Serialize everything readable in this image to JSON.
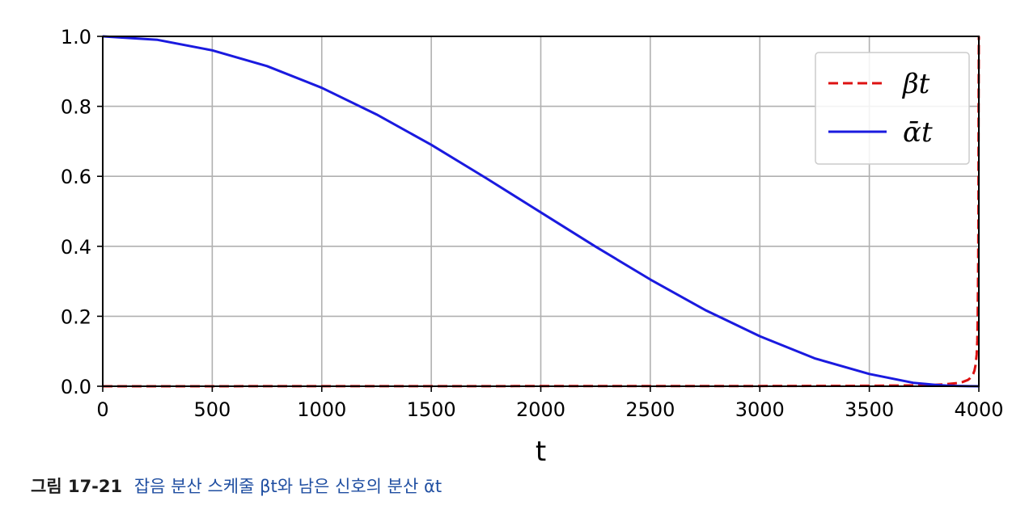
{
  "chart_data": {
    "type": "line",
    "xlabel": "t",
    "ylabel": "",
    "xlim": [
      0,
      4000
    ],
    "ylim": [
      0,
      1
    ],
    "xticks": [
      "0",
      "500",
      "1000",
      "1500",
      "2000",
      "2500",
      "3000",
      "3500",
      "4000"
    ],
    "yticks": [
      "0.0",
      "0.2",
      "0.4",
      "0.6",
      "0.8",
      "1.0"
    ],
    "grid": true,
    "legend_position": "top-right",
    "series": [
      {
        "name": "βt",
        "color": "#dd1111",
        "style": "dashed",
        "x": [
          0,
          1000,
          2000,
          3000,
          3500,
          3700,
          3800,
          3850,
          3900,
          3925,
          3950,
          3960,
          3970,
          3975,
          3980,
          3985,
          3990,
          3993,
          3995,
          3997,
          3998,
          3999,
          4000
        ],
        "values": [
          0.0001,
          0.0002,
          0.0004,
          0.0008,
          0.0015,
          0.0025,
          0.004,
          0.006,
          0.009,
          0.012,
          0.018,
          0.023,
          0.03,
          0.036,
          0.045,
          0.06,
          0.09,
          0.13,
          0.2,
          0.35,
          0.5,
          0.8,
          1.0
        ]
      },
      {
        "name": "ᾱt",
        "color": "#1a1adf",
        "style": "solid",
        "x": [
          0,
          250,
          500,
          750,
          1000,
          1250,
          1500,
          1750,
          2000,
          2250,
          2500,
          2750,
          3000,
          3250,
          3500,
          3700,
          3800,
          3850,
          3900,
          3950,
          4000
        ],
        "values": [
          1.0,
          0.99,
          0.96,
          0.915,
          0.853,
          0.777,
          0.69,
          0.595,
          0.497,
          0.399,
          0.305,
          0.218,
          0.143,
          0.08,
          0.035,
          0.01,
          0.004,
          0.002,
          0.001,
          0.0003,
          0.0
        ]
      }
    ]
  },
  "caption": {
    "figure_number": "그림 17-21",
    "text": "잡음 분산 스케줄 βt와 남은 신호의 분산 ᾱt"
  }
}
